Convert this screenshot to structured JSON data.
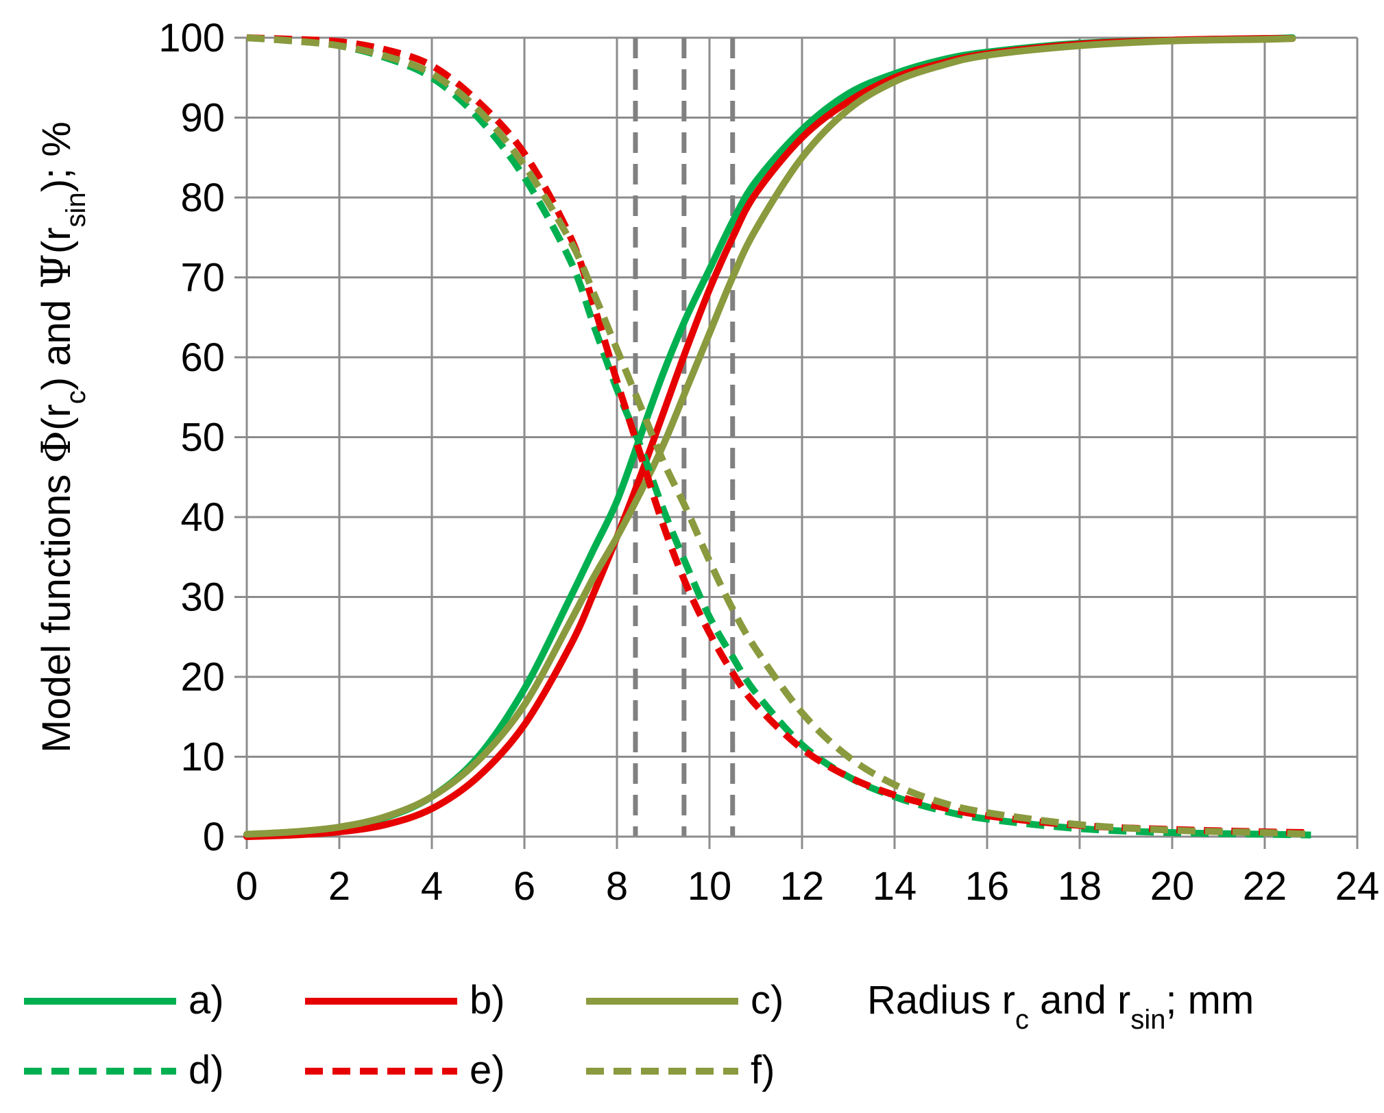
{
  "chart_data": {
    "type": "line",
    "title": "",
    "xlabel": {
      "parts": [
        {
          "text": "Radius r",
          "sub": false
        },
        {
          "text": "c",
          "sub": true
        },
        {
          "text": " and r",
          "sub": false
        },
        {
          "text": "sin",
          "sub": true
        },
        {
          "text": "; mm",
          "sub": false
        }
      ]
    },
    "ylabel": {
      "parts": [
        {
          "text": "Model  functions  ",
          "sub": false,
          "greek": false
        },
        {
          "text": "Φ",
          "sub": false,
          "greek": true
        },
        {
          "text": "(r",
          "sub": false,
          "greek": false
        },
        {
          "text": "c",
          "sub": true,
          "greek": false
        },
        {
          "text": ") and ",
          "sub": false,
          "greek": false
        },
        {
          "text": "Ψ",
          "sub": false,
          "greek": true
        },
        {
          "text": "(r",
          "sub": false,
          "greek": false
        },
        {
          "text": "sin",
          "sub": true,
          "greek": false
        },
        {
          "text": "); %",
          "sub": false,
          "greek": false
        }
      ]
    },
    "xlim": [
      0,
      24
    ],
    "ylim": [
      0,
      100
    ],
    "x_ticks": [
      "0",
      "2",
      "4",
      "6",
      "8",
      "10",
      "12",
      "14",
      "16",
      "18",
      "20",
      "22",
      "24"
    ],
    "y_ticks": [
      "0",
      "10",
      "20",
      "30",
      "40",
      "50",
      "60",
      "70",
      "80",
      "90",
      "100"
    ],
    "grid": true,
    "reference_lines": [
      {
        "x": 8.4,
        "style": "dashed",
        "color": "#808080"
      },
      {
        "x": 9.45,
        "style": "dashed",
        "color": "#808080"
      },
      {
        "x": 10.5,
        "style": "dashed",
        "color": "#808080"
      }
    ],
    "legend_position": "bottom",
    "series": [
      {
        "name": "a)",
        "style": "solid",
        "color": "#00b050",
        "x": [
          0,
          1,
          2,
          3,
          4,
          5,
          6,
          7,
          7.5,
          8,
          8.5,
          9,
          9.5,
          10,
          10.5,
          11,
          12,
          13,
          14,
          15,
          16,
          18,
          20,
          22,
          22.6
        ],
        "y": [
          0.2,
          0.4,
          1.1,
          2.4,
          5,
          10,
          18.5,
          30,
          36,
          42,
          50,
          58,
          65,
          71,
          77,
          82,
          88.5,
          93,
          95.5,
          97.2,
          98.2,
          99.3,
          99.7,
          99.9,
          100
        ]
      },
      {
        "name": "b)",
        "style": "solid",
        "color": "#e60000",
        "x": [
          0,
          1,
          2,
          3,
          4,
          5,
          6,
          7,
          7.5,
          8,
          8.5,
          9,
          9.5,
          10,
          10.5,
          11,
          12,
          13,
          14,
          15,
          16,
          18,
          20,
          22,
          22.6
        ],
        "y": [
          0,
          0.2,
          0.6,
          1.5,
          3.5,
          7.5,
          14,
          24,
          30.5,
          37.5,
          45,
          53,
          61,
          68.5,
          75,
          80.5,
          87.5,
          92,
          95,
          96.8,
          98,
          99.2,
          99.7,
          99.9,
          99.9
        ]
      },
      {
        "name": "c)",
        "style": "solid",
        "color": "#8a9a3e",
        "x": [
          0,
          1,
          2,
          3,
          4,
          5,
          6,
          7,
          7.5,
          8,
          8.5,
          9,
          9.5,
          10,
          10.5,
          11,
          12,
          13,
          14,
          15,
          16,
          18,
          20,
          22,
          22.6
        ],
        "y": [
          0.3,
          0.6,
          1.2,
          2.5,
          5,
          9.5,
          16.5,
          27,
          32.5,
          37.5,
          43,
          49,
          56,
          63,
          70,
          76,
          85,
          91,
          94.5,
          96.5,
          97.8,
          99,
          99.6,
          99.8,
          99.9
        ]
      },
      {
        "name": "d)",
        "style": "dashed",
        "color": "#00b050",
        "x": [
          0,
          1,
          2,
          3,
          4,
          5,
          6,
          7,
          7.5,
          8,
          8.5,
          9,
          9.5,
          10,
          10.5,
          11,
          12,
          13,
          14,
          15,
          16,
          18,
          20,
          22,
          23
        ],
        "y": [
          100,
          99.6,
          99,
          97.5,
          95,
          90,
          82.5,
          72,
          64,
          56,
          49,
          41,
          34,
          27.5,
          22.5,
          18,
          11.5,
          7.5,
          5,
          3.3,
          2.2,
          1,
          0.5,
          0.3,
          0.2
        ]
      },
      {
        "name": "e)",
        "style": "dashed",
        "color": "#e60000",
        "x": [
          0,
          1,
          2,
          3,
          4,
          5,
          6,
          7,
          7.5,
          8,
          8.5,
          9,
          9.5,
          10,
          10.5,
          11,
          12,
          13,
          14,
          15,
          16,
          18,
          20,
          22,
          23
        ],
        "y": [
          100,
          99.8,
          99.5,
          98.5,
          96.5,
          92,
          85.5,
          75,
          66.5,
          57,
          48,
          39,
          31.5,
          25.5,
          20.5,
          16.5,
          11,
          7.5,
          5.2,
          3.7,
          2.6,
          1.4,
          0.9,
          0.6,
          0.5
        ]
      },
      {
        "name": "f)",
        "style": "dashed",
        "color": "#8a9a3e",
        "x": [
          0,
          1,
          2,
          3,
          4,
          5,
          6,
          7,
          7.5,
          8,
          8.5,
          9,
          9.5,
          10,
          10.5,
          11,
          12,
          13,
          14,
          15,
          16,
          18,
          20,
          22,
          23
        ],
        "y": [
          100,
          99.6,
          99,
          97.7,
          95.5,
          91,
          84,
          74.5,
          68,
          61,
          54,
          47,
          41,
          34.5,
          28.5,
          23.5,
          15.5,
          10,
          6.5,
          4.3,
          3,
          1.5,
          0.8,
          0.5,
          0.3
        ]
      }
    ]
  }
}
